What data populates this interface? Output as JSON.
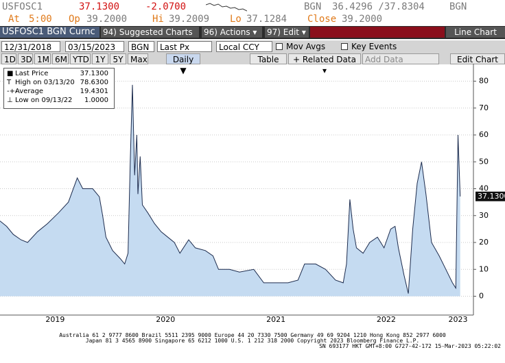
{
  "header": {
    "ticker": "USFOSC1",
    "last": "37.1300",
    "change": "-2.0700",
    "bid_src": "BGN",
    "bid_ask": "36.4296 /37.8304",
    "ask_src": "BGN",
    "at_label": "At",
    "at_value": "5:00",
    "op_label": "Op",
    "op_value": "39.2000",
    "hi_label": "Hi",
    "hi_value": "39.2009",
    "lo_label": "Lo",
    "lo_value": "37.1284",
    "close_label": "Close",
    "close_value": "39.2000"
  },
  "toolbar": {
    "security": "USFOSC1 BGN Curnc",
    "suggested": "94) Suggested Charts",
    "actions": "96) Actions ▾",
    "edit": "97) Edit ▾",
    "view": "Line Chart",
    "start_date": "12/31/2018",
    "end_date": "03/15/2023",
    "source": "BGN",
    "field": "Last Px",
    "currency": "Local CCY",
    "mov_avgs": "Mov Avgs",
    "key_events": "Key Events",
    "periods": [
      "1D",
      "3D",
      "1M",
      "6M",
      "YTD",
      "1Y",
      "5Y",
      "Max"
    ],
    "frequency": "Daily ▼",
    "table": "Table",
    "related": "+ Related Data ▾",
    "add_data": "Add Data",
    "edit_chart": "Edit Chart"
  },
  "chart_data": {
    "type": "area",
    "series": [
      {
        "name": "Last Price",
        "color": "#1c2b4d",
        "fill": "#c5dbf1",
        "x": [
          2019.0,
          2019.06,
          2019.12,
          2019.19,
          2019.25,
          2019.34,
          2019.43,
          2019.53,
          2019.62,
          2019.7,
          2019.75,
          2019.84,
          2019.9,
          2019.93,
          2019.96,
          2020.02,
          2020.09,
          2020.13,
          2020.16,
          2020.18,
          2020.2,
          2020.22,
          2020.24,
          2020.25,
          2020.27,
          2020.29,
          2020.34,
          2020.4,
          2020.46,
          2020.52,
          2020.58,
          2020.63,
          2020.71,
          2020.77,
          2020.86,
          2020.93,
          2020.98,
          2021.08,
          2021.17,
          2021.3,
          2021.39,
          2021.48,
          2021.61,
          2021.7,
          2021.76,
          2021.86,
          2021.95,
          2022.04,
          2022.11,
          2022.14,
          2022.17,
          2022.2,
          2022.23,
          2022.29,
          2022.35,
          2022.42,
          2022.48,
          2022.54,
          2022.58,
          2022.61,
          2022.66,
          2022.7,
          2022.74,
          2022.78,
          2022.82,
          2022.86,
          2022.91,
          2022.98,
          2023.04,
          2023.1,
          2023.13,
          2023.15,
          2023.17
        ],
        "values": [
          28,
          26,
          23,
          21,
          20,
          24,
          27,
          31,
          35,
          44,
          40,
          40,
          37,
          30,
          22,
          17,
          14,
          12,
          16,
          50,
          78.63,
          45,
          60,
          38,
          52,
          34,
          31,
          27,
          24,
          22,
          20,
          16,
          21,
          18,
          17,
          15,
          10,
          10,
          9,
          10,
          5,
          5,
          5,
          6,
          12,
          12,
          10,
          6,
          5,
          12,
          36,
          25,
          18,
          16,
          20,
          22,
          18,
          25,
          26,
          18,
          8,
          1,
          25,
          42,
          50,
          38,
          20,
          15,
          10,
          5,
          3,
          60,
          37.13
        ]
      }
    ],
    "legend": [
      {
        "label": "Last Price",
        "value": "37.1300"
      },
      {
        "label": "High on 03/13/20",
        "value": "78.6300"
      },
      {
        "label": "Average",
        "value": "19.4301"
      },
      {
        "label": "Low on 09/13/22",
        "value": "1.0000"
      }
    ],
    "xlim": [
      2019,
      2023.29
    ],
    "ylim": [
      -7,
      86.5
    ],
    "xticks": [
      {
        "value": 2019.5,
        "label": "2019"
      },
      {
        "value": 2020.5,
        "label": "2020"
      },
      {
        "value": 2021.5,
        "label": "2021"
      },
      {
        "value": 2022.5,
        "label": "2022"
      },
      {
        "value": 2023.15,
        "label": "2023"
      }
    ],
    "yticks": [
      0,
      10,
      20,
      30,
      40,
      50,
      60,
      70,
      80
    ],
    "grid": true
  },
  "footer": [
    "Australia 61 2 9777 8600 Brazil 5511 2395 9000 Europe 44 20 7330 7500 Germany 49 69 9204 1210 Hong Kong 852 2977 6000",
    "Japan 81 3 4565 8900      Singapore 65 6212 1000      U.S. 1 212 318 2000      Copyright 2023 Bloomberg Finance L.P.",
    "SN 693177 HKT  GMT+8:00 G727-42-172 15-Mar-2023 05:22:02"
  ]
}
